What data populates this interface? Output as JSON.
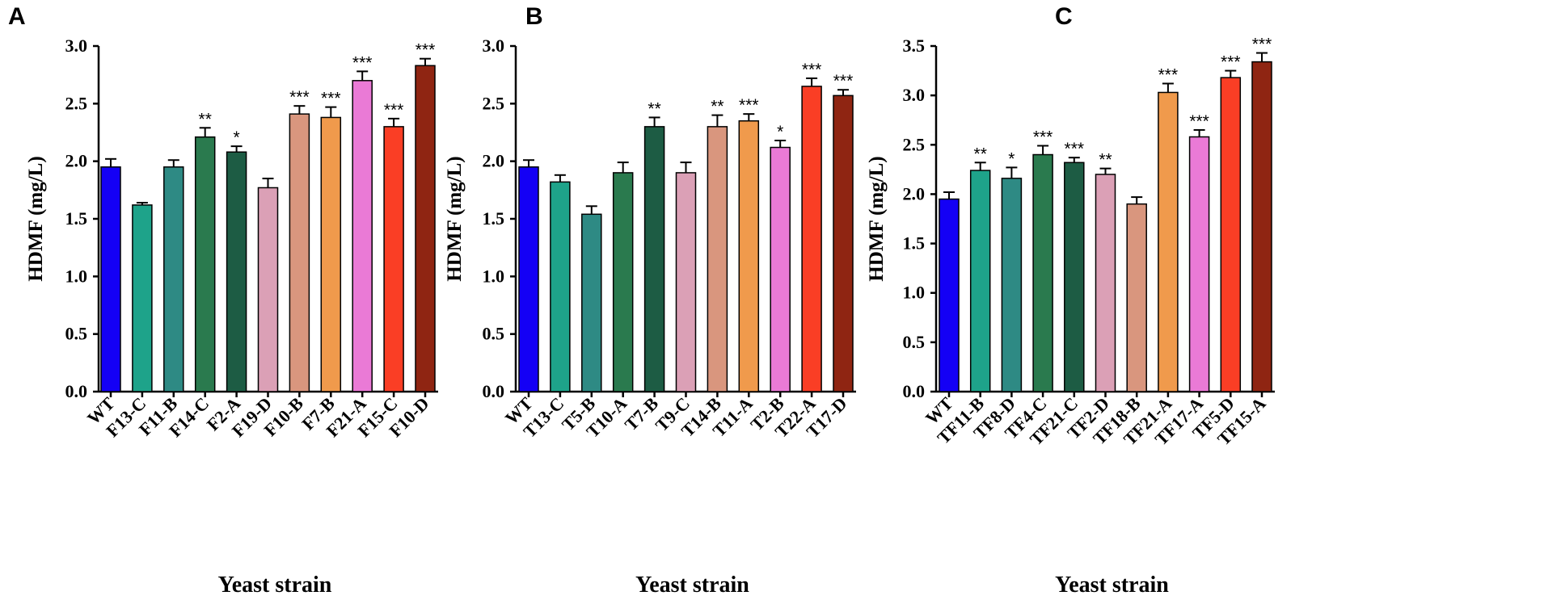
{
  "chart_data": [
    {
      "type": "bar",
      "panel": "A",
      "xlabel": "Yeast strain",
      "ylabel": "HDMF (mg/L)",
      "ylim": [
        0,
        3.0
      ],
      "yticks": [
        "0.0",
        "0.5",
        "1.0",
        "1.5",
        "2.0",
        "2.5",
        "3.0"
      ],
      "categories": [
        "WT",
        "F13-C",
        "F11-B",
        "F14-C",
        "F2-A",
        "F19-D",
        "F10-B",
        "F7-B",
        "F21-A",
        "F15-C",
        "F10-D"
      ],
      "values": [
        1.95,
        1.62,
        1.95,
        2.21,
        2.08,
        1.77,
        2.41,
        2.38,
        2.7,
        2.3,
        2.83
      ],
      "errors": [
        0.07,
        0.02,
        0.06,
        0.08,
        0.05,
        0.08,
        0.07,
        0.09,
        0.08,
        0.07,
        0.06
      ],
      "significance": [
        "",
        "",
        "",
        "**",
        "*",
        "",
        "***",
        "***",
        "***",
        "***",
        "***"
      ],
      "colors": [
        "#1400f5",
        "#1ea38a",
        "#2e8a84",
        "#2a7a4e",
        "#1d5c44",
        "#dba0b6",
        "#d9967e",
        "#f09a4c",
        "#ea7ad6",
        "#fa3e25",
        "#8f2512"
      ]
    },
    {
      "type": "bar",
      "panel": "B",
      "xlabel": "Yeast strain",
      "ylabel": "HDMF (mg/L)",
      "ylim": [
        0,
        3.0
      ],
      "yticks": [
        "0.0",
        "0.5",
        "1.0",
        "1.5",
        "2.0",
        "2.5",
        "3.0"
      ],
      "categories": [
        "WT",
        "T13-C",
        "T5-B",
        "T10-A",
        "T7-B",
        "T9-C",
        "T14-B",
        "T11-A",
        "T2-B",
        "T22-A",
        "T17-D"
      ],
      "values": [
        1.95,
        1.82,
        1.54,
        1.9,
        2.3,
        1.9,
        2.3,
        2.35,
        2.12,
        2.65,
        2.57
      ],
      "errors": [
        0.06,
        0.06,
        0.07,
        0.09,
        0.08,
        0.09,
        0.1,
        0.06,
        0.06,
        0.07,
        0.05
      ],
      "significance": [
        "",
        "",
        "",
        "",
        "**",
        "",
        "**",
        "***",
        "*",
        "***",
        "***"
      ],
      "colors": [
        "#1400f5",
        "#1ea38a",
        "#2e8a84",
        "#2a7a4e",
        "#1d5c44",
        "#dba0b6",
        "#d9967e",
        "#f09a4c",
        "#ea7ad6",
        "#fa3e25",
        "#8f2512"
      ]
    },
    {
      "type": "bar",
      "panel": "C",
      "xlabel": "Yeast strain",
      "ylabel": "HDMF (mg/L)",
      "ylim": [
        0,
        3.5
      ],
      "yticks": [
        "0.0",
        "0.5",
        "1.0",
        "1.5",
        "2.0",
        "2.5",
        "3.0",
        "3.5"
      ],
      "categories": [
        "WT",
        "TF11-B",
        "TF8-D",
        "TF4-C",
        "TF21-C",
        "TF2-D",
        "TF18-B",
        "TF21-A",
        "TF17-A",
        "TF5-D",
        "TF15-A"
      ],
      "values": [
        1.95,
        2.24,
        2.16,
        2.4,
        2.32,
        2.2,
        1.9,
        3.03,
        2.58,
        3.18,
        3.34
      ],
      "errors": [
        0.07,
        0.08,
        0.11,
        0.09,
        0.05,
        0.06,
        0.07,
        0.09,
        0.07,
        0.07,
        0.09
      ],
      "significance": [
        "",
        "**",
        "*",
        "***",
        "***",
        "**",
        "",
        "***",
        "***",
        "***",
        "***"
      ],
      "colors": [
        "#1400f5",
        "#1ea38a",
        "#2e8a84",
        "#2a7a4e",
        "#1d5c44",
        "#dba0b6",
        "#d9967e",
        "#f09a4c",
        "#ea7ad6",
        "#fa3e25",
        "#8f2512"
      ]
    }
  ]
}
